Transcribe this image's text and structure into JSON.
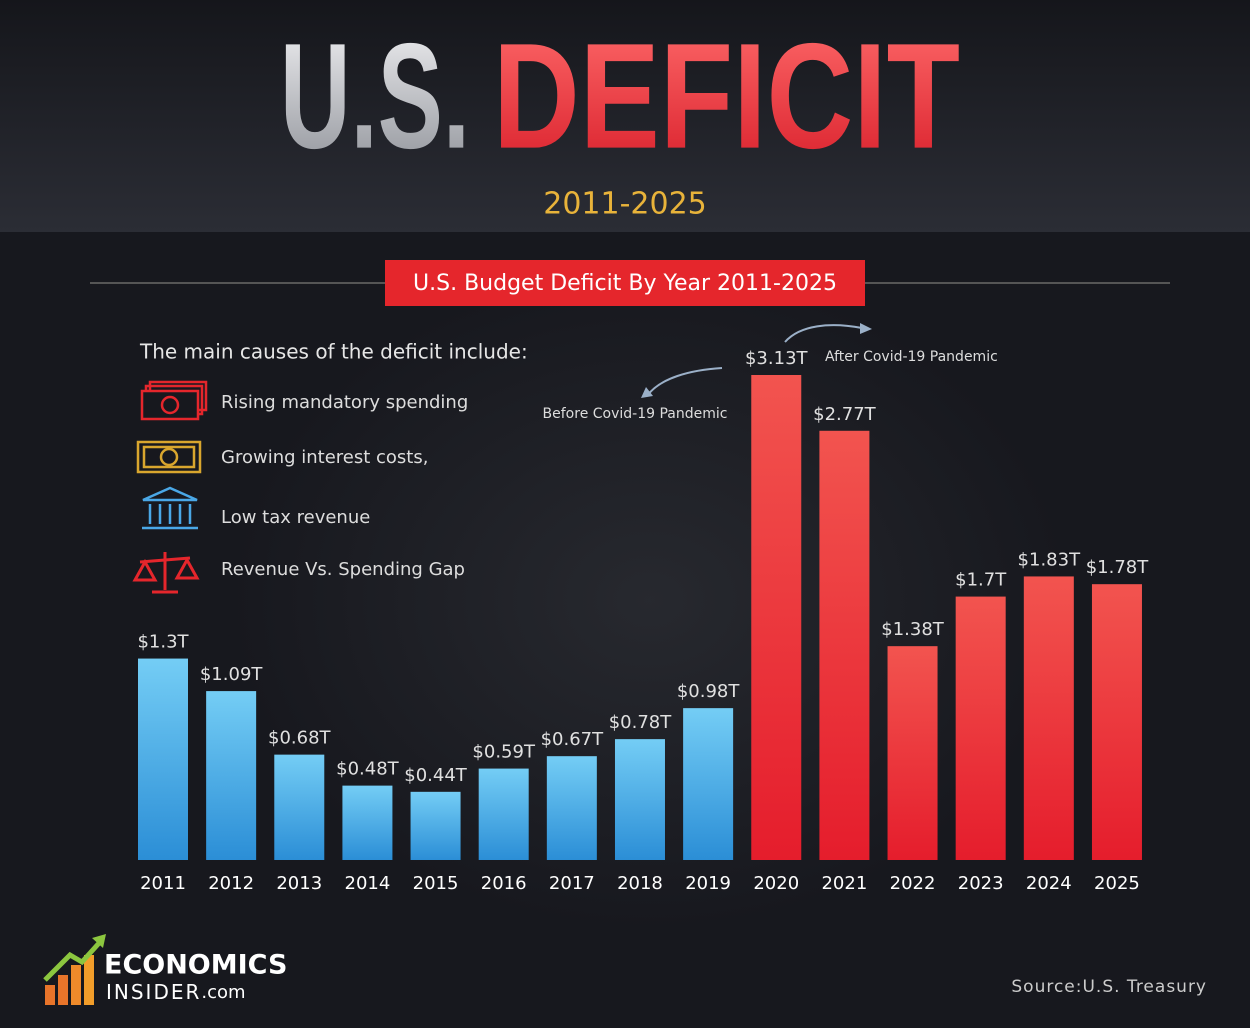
{
  "chart_data": {
    "type": "bar",
    "title_part1": "U.S.",
    "title_part2": "DEFICIT",
    "subtitle": "2011-2025",
    "banner": "U.S. Budget Deficit By Year 2011-2025",
    "causes_heading": "The main causes of the deficit include:",
    "causes": [
      "Rising mandatory spending",
      "Growing interest costs,",
      "Low tax revenue",
      "Revenue Vs. Spending Gap"
    ],
    "annotations": [
      "Before Covid-19 Pandemic",
      "After Covid-19 Pandemic"
    ],
    "categories": [
      "2011",
      "2012",
      "2013",
      "2014",
      "2015",
      "2016",
      "2017",
      "2018",
      "2019",
      "2020",
      "2021",
      "2022",
      "2023",
      "2024",
      "2025"
    ],
    "values": [
      1.3,
      1.09,
      0.68,
      0.48,
      0.44,
      0.59,
      0.67,
      0.78,
      0.98,
      3.13,
      2.77,
      1.38,
      1.7,
      1.83,
      1.78
    ],
    "value_labels": [
      "$1.3T",
      "$1.09T",
      "$0.68T",
      "$0.48T",
      "$0.44T",
      "$0.59T",
      "$0.67T",
      "$0.78T",
      "$0.98T",
      "$3.13T",
      "$2.77T",
      "$1.38T",
      "$1.7T",
      "$1.83T",
      "$1.78T"
    ],
    "colors": [
      "blue",
      "blue",
      "blue",
      "blue",
      "blue",
      "blue",
      "blue",
      "blue",
      "blue",
      "red",
      "red",
      "red",
      "red",
      "red",
      "red"
    ],
    "logo": [
      "ECONOMICS",
      "INSIDER",
      ".com"
    ],
    "source": "Source:U.S. Treasury"
  }
}
